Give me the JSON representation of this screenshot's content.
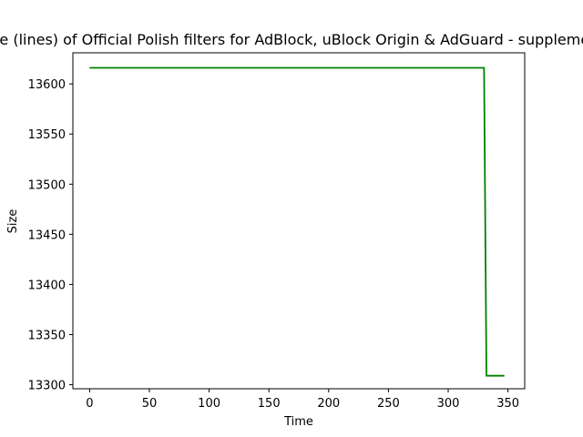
{
  "chart_data": {
    "type": "line",
    "title": "Size (lines) of Official Polish filters for AdBlock, uBlock Origin & AdGuard - supplement",
    "xlabel": "Time",
    "ylabel": "Size",
    "xlim": [
      -14,
      364
    ],
    "ylim": [
      13296,
      13631
    ],
    "x_ticks": [
      0,
      50,
      100,
      150,
      200,
      250,
      300,
      350
    ],
    "y_ticks": [
      13300,
      13350,
      13400,
      13450,
      13500,
      13550,
      13600
    ],
    "grid": false,
    "legend": "none",
    "series": [
      {
        "color": "#008000",
        "points": [
          [
            0,
            13616
          ],
          [
            330,
            13616
          ],
          [
            332,
            13309
          ],
          [
            347,
            13309
          ]
        ]
      }
    ]
  }
}
